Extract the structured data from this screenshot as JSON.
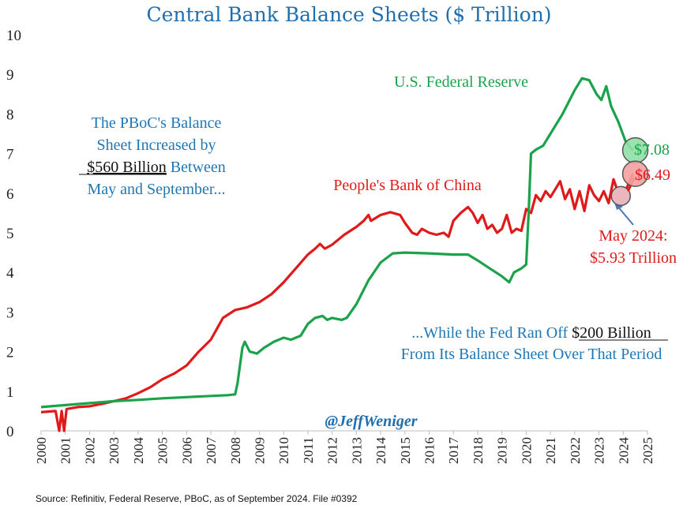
{
  "chart_data": {
    "type": "line",
    "title": "Central Bank Balance Sheets ($ Trillion)",
    "ylim": [
      0,
      10
    ],
    "y_ticks": [
      "0",
      "1",
      "2",
      "3",
      "4",
      "5",
      "6",
      "7",
      "8",
      "9",
      "10"
    ],
    "xlim": [
      2000,
      2025
    ],
    "x_ticks": [
      "2000",
      "2001",
      "2002",
      "2003",
      "2004",
      "2005",
      "2006",
      "2007",
      "2008",
      "2009",
      "2010",
      "2011",
      "2012",
      "2013",
      "2014",
      "2015",
      "2016",
      "2017",
      "2018",
      "2019",
      "2020",
      "2021",
      "2022",
      "2023",
      "2024",
      "2025"
    ],
    "grid": false,
    "series": [
      {
        "name": "People's Bank of China",
        "color": "#e01a1a",
        "points": [
          [
            2000.0,
            0.47
          ],
          [
            2000.6,
            0.5
          ],
          [
            2000.75,
            0.0
          ],
          [
            2000.85,
            0.5
          ],
          [
            2000.95,
            0.0
          ],
          [
            2001.05,
            0.55
          ],
          [
            2001.5,
            0.6
          ],
          [
            2002.0,
            0.62
          ],
          [
            2002.5,
            0.68
          ],
          [
            2003.0,
            0.75
          ],
          [
            2003.5,
            0.82
          ],
          [
            2004.0,
            0.95
          ],
          [
            2004.5,
            1.1
          ],
          [
            2005.0,
            1.3
          ],
          [
            2005.5,
            1.45
          ],
          [
            2006.0,
            1.65
          ],
          [
            2006.5,
            2.0
          ],
          [
            2007.0,
            2.3
          ],
          [
            2007.5,
            2.85
          ],
          [
            2008.0,
            3.05
          ],
          [
            2008.5,
            3.12
          ],
          [
            2009.0,
            3.25
          ],
          [
            2009.5,
            3.45
          ],
          [
            2010.0,
            3.75
          ],
          [
            2010.5,
            4.1
          ],
          [
            2011.0,
            4.45
          ],
          [
            2011.3,
            4.6
          ],
          [
            2011.5,
            4.72
          ],
          [
            2011.7,
            4.6
          ],
          [
            2012.0,
            4.7
          ],
          [
            2012.5,
            4.95
          ],
          [
            2013.0,
            5.15
          ],
          [
            2013.3,
            5.3
          ],
          [
            2013.5,
            5.45
          ],
          [
            2013.6,
            5.3
          ],
          [
            2014.0,
            5.45
          ],
          [
            2014.4,
            5.52
          ],
          [
            2014.8,
            5.45
          ],
          [
            2015.0,
            5.25
          ],
          [
            2015.3,
            5.0
          ],
          [
            2015.5,
            4.95
          ],
          [
            2015.7,
            5.1
          ],
          [
            2016.0,
            5.0
          ],
          [
            2016.3,
            4.95
          ],
          [
            2016.6,
            5.0
          ],
          [
            2016.8,
            4.9
          ],
          [
            2017.0,
            5.3
          ],
          [
            2017.3,
            5.5
          ],
          [
            2017.6,
            5.65
          ],
          [
            2017.8,
            5.5
          ],
          [
            2018.0,
            5.25
          ],
          [
            2018.2,
            5.45
          ],
          [
            2018.4,
            5.1
          ],
          [
            2018.6,
            5.2
          ],
          [
            2018.8,
            5.0
          ],
          [
            2019.0,
            5.1
          ],
          [
            2019.2,
            5.45
          ],
          [
            2019.4,
            5.0
          ],
          [
            2019.6,
            5.1
          ],
          [
            2019.8,
            5.05
          ],
          [
            2020.0,
            5.6
          ],
          [
            2020.2,
            5.5
          ],
          [
            2020.4,
            5.95
          ],
          [
            2020.6,
            5.8
          ],
          [
            2020.8,
            6.05
          ],
          [
            2021.0,
            5.9
          ],
          [
            2021.2,
            6.1
          ],
          [
            2021.4,
            6.3
          ],
          [
            2021.6,
            5.85
          ],
          [
            2021.8,
            6.1
          ],
          [
            2022.0,
            5.6
          ],
          [
            2022.2,
            6.05
          ],
          [
            2022.4,
            5.55
          ],
          [
            2022.6,
            6.2
          ],
          [
            2022.8,
            5.95
          ],
          [
            2023.0,
            5.8
          ],
          [
            2023.2,
            6.05
          ],
          [
            2023.4,
            5.75
          ],
          [
            2023.6,
            6.35
          ],
          [
            2023.8,
            6.0
          ],
          [
            2024.0,
            5.93
          ],
          [
            2024.4,
            6.49
          ]
        ]
      },
      {
        "name": "U.S. Federal Reserve",
        "color": "#1aa34a",
        "points": [
          [
            2000.0,
            0.6
          ],
          [
            2001.0,
            0.65
          ],
          [
            2002.0,
            0.7
          ],
          [
            2003.0,
            0.75
          ],
          [
            2004.0,
            0.78
          ],
          [
            2005.0,
            0.82
          ],
          [
            2006.0,
            0.85
          ],
          [
            2007.0,
            0.88
          ],
          [
            2007.7,
            0.9
          ],
          [
            2008.0,
            0.92
          ],
          [
            2008.1,
            1.2
          ],
          [
            2008.3,
            2.1
          ],
          [
            2008.4,
            2.25
          ],
          [
            2008.6,
            2.0
          ],
          [
            2008.9,
            1.95
          ],
          [
            2009.2,
            2.1
          ],
          [
            2009.6,
            2.25
          ],
          [
            2010.0,
            2.35
          ],
          [
            2010.3,
            2.3
          ],
          [
            2010.7,
            2.4
          ],
          [
            2011.0,
            2.7
          ],
          [
            2011.3,
            2.85
          ],
          [
            2011.6,
            2.9
          ],
          [
            2011.8,
            2.8
          ],
          [
            2012.0,
            2.85
          ],
          [
            2012.4,
            2.8
          ],
          [
            2012.6,
            2.85
          ],
          [
            2013.0,
            3.2
          ],
          [
            2013.5,
            3.8
          ],
          [
            2014.0,
            4.25
          ],
          [
            2014.5,
            4.48
          ],
          [
            2015.0,
            4.5
          ],
          [
            2016.0,
            4.48
          ],
          [
            2017.0,
            4.45
          ],
          [
            2017.6,
            4.45
          ],
          [
            2018.0,
            4.3
          ],
          [
            2018.5,
            4.1
          ],
          [
            2019.0,
            3.9
          ],
          [
            2019.3,
            3.75
          ],
          [
            2019.5,
            4.0
          ],
          [
            2019.8,
            4.1
          ],
          [
            2020.0,
            4.2
          ],
          [
            2020.1,
            5.5
          ],
          [
            2020.2,
            7.0
          ],
          [
            2020.4,
            7.1
          ],
          [
            2020.7,
            7.2
          ],
          [
            2021.0,
            7.5
          ],
          [
            2021.5,
            8.0
          ],
          [
            2022.0,
            8.6
          ],
          [
            2022.3,
            8.9
          ],
          [
            2022.6,
            8.85
          ],
          [
            2022.9,
            8.5
          ],
          [
            2023.1,
            8.35
          ],
          [
            2023.3,
            8.7
          ],
          [
            2023.5,
            8.2
          ],
          [
            2023.8,
            7.8
          ],
          [
            2024.1,
            7.3
          ],
          [
            2024.4,
            7.08
          ]
        ]
      }
    ],
    "end_labels": {
      "fed_value": "$7.08",
      "pboc_value": "$6.49"
    },
    "annotations": {
      "fed_label": "U.S. Federal Reserve",
      "pboc_label": "People's Bank of China",
      "left_text": {
        "line1": "The PBoC's Balance",
        "line2": "Sheet Increased by",
        "line3_underlined": "$560 Billion",
        "line3_rest": " Between",
        "line4": "May and September..."
      },
      "may_label": {
        "line1": "May 2024:",
        "line2": "$5.93 Trillion"
      },
      "right_text": {
        "line1_prefix": "...While the Fed Ran Off ",
        "line1_underlined": "$200 Billion",
        "line2": "From Its Balance Sheet Over That Period"
      }
    },
    "marker_colors": {
      "fed": "#8fe0a6",
      "pboc_sep": "#f5a0a0",
      "pboc_may": "#e9b7bd"
    }
  },
  "handle": "@JeffWeniger",
  "source": "Source: Refinitiv, Federal Reserve, PBoC, as of September 2024. File #0392"
}
